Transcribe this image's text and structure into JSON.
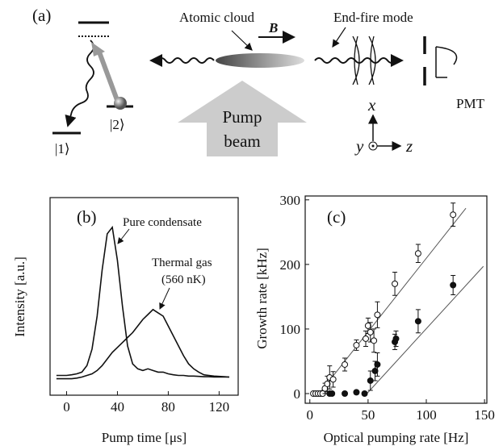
{
  "diagram": {
    "panel_label": "(a)",
    "cloud_label": "Atomic cloud",
    "field_label": "B",
    "mode_label": "End-fire mode",
    "detector_label": "PMT",
    "pump_line1": "Pump",
    "pump_line2": "beam",
    "level1": "|1⟩",
    "level2": "|2⟩",
    "axis_x": "x",
    "axis_y": "y",
    "axis_z": "z"
  },
  "chart_data": [
    {
      "type": "line",
      "panel_label": "(b)",
      "x_label": "Pump time [μs]",
      "y_label": "Intensity [a.u.]",
      "xlim": [
        -13,
        135
      ],
      "ylim": [
        -0.5,
        5.5
      ],
      "xticks": [
        0,
        40,
        80,
        120
      ],
      "color": "#111111",
      "x": [
        -8,
        -4,
        0,
        4,
        8,
        12,
        16,
        20,
        24,
        28,
        32,
        36,
        40,
        44,
        48,
        52,
        56,
        60,
        64,
        68,
        72,
        76,
        80,
        84,
        88,
        92,
        96,
        100,
        104,
        108,
        112,
        116,
        120,
        124,
        128
      ],
      "series": [
        {
          "values": [
            0.1,
            0.1,
            0.1,
            0.12,
            0.15,
            0.2,
            0.4,
            0.9,
            1.9,
            3.3,
            4.4,
            4.6,
            3.6,
            2.2,
            1.0,
            0.45,
            0.3,
            0.25,
            0.3,
            0.25,
            0.2,
            0.2,
            0.15,
            0.12,
            0.1,
            0.1,
            0.08,
            0.08,
            0.07,
            0.06,
            0.06,
            0.05,
            0.05,
            0.05,
            0.05
          ]
        },
        {
          "values": [
            0,
            0,
            0,
            0,
            0.02,
            0.05,
            0.1,
            0.15,
            0.25,
            0.4,
            0.6,
            0.8,
            0.95,
            1.1,
            1.25,
            1.4,
            1.6,
            1.8,
            1.95,
            2.1,
            2.0,
            1.9,
            1.6,
            1.3,
            1.0,
            0.7,
            0.45,
            0.3,
            0.2,
            0.12,
            0.1,
            0.08,
            0.07,
            0.06,
            0.05
          ]
        }
      ],
      "annotations": [
        {
          "text": "Pure condensate"
        },
        {
          "text": "Thermal gas"
        },
        {
          "text": "(560 nK)"
        }
      ]
    },
    {
      "type": "scatter",
      "panel_label": "(c)",
      "x_label": "Optical pumping rate [Hz]",
      "y_label": "Growth rate [kHz]",
      "xlim": [
        -4,
        152
      ],
      "ylim": [
        -15,
        306
      ],
      "xticks": [
        0,
        50,
        100,
        150
      ],
      "yticks": [
        0,
        100,
        200,
        300
      ],
      "series": [
        {
          "marker": "open",
          "x": [
            3,
            5,
            7,
            9,
            11,
            13,
            15,
            17,
            20,
            30,
            40,
            48,
            50,
            52,
            55,
            58,
            73,
            93,
            123
          ],
          "values": [
            0,
            0,
            0,
            0,
            0,
            8,
            15,
            25,
            22,
            45,
            75,
            85,
            105,
            95,
            82,
            122,
            170,
            217,
            277
          ],
          "errors": [
            2,
            2,
            2,
            2,
            3,
            8,
            12,
            18,
            12,
            10,
            8,
            12,
            12,
            15,
            18,
            20,
            18,
            14,
            18
          ]
        },
        {
          "marker": "filled",
          "x": [
            17,
            19,
            30,
            40,
            47,
            52,
            56,
            58,
            73,
            74,
            93,
            123
          ],
          "values": [
            0,
            0,
            0,
            2,
            0,
            20,
            35,
            45,
            80,
            85,
            112,
            168
          ],
          "errors": [
            3,
            3,
            3,
            3,
            3,
            15,
            15,
            18,
            12,
            12,
            18,
            15
          ]
        }
      ],
      "fits": [
        {
          "x": [
            8,
            134
          ],
          "y": [
            0,
            287
          ]
        },
        {
          "x": [
            49,
            149
          ],
          "y": [
            0,
            197
          ]
        }
      ]
    }
  ]
}
